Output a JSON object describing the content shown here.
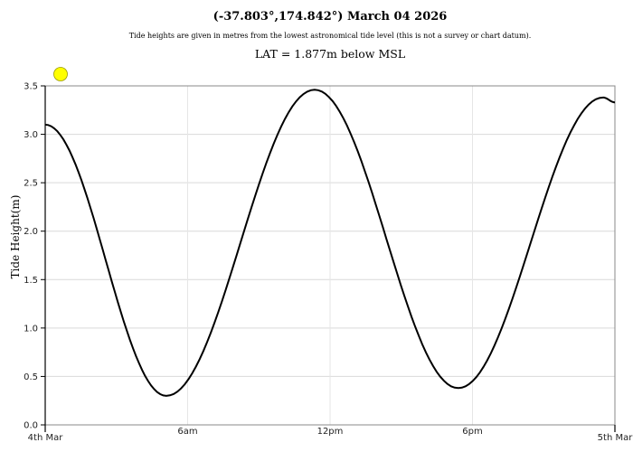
{
  "header": {
    "title": "(-37.803°,174.842°) March 04 2026",
    "subtitle": "Tide heights are given in metres from the lowest astronomical tide level (this is not a survey or chart datum).",
    "lat_note": "LAT = 1.877m below MSL"
  },
  "icons": {
    "sun": "sun-icon"
  },
  "colors": {
    "line": "#000000",
    "grid": "#d9d9d9",
    "axis": "#888888",
    "sun_fill": "#ffff00",
    "sun_stroke": "#999900"
  },
  "chart_data": {
    "type": "line",
    "title": "(-37.803°,174.842°) March 04 2026",
    "xlabel": "",
    "ylabel": "Tide Height(m)",
    "ylim": [
      0,
      3.5
    ],
    "xlim_hours": [
      0,
      24
    ],
    "grid": true,
    "legend": "none",
    "y_ticks": [
      "0.0",
      "0.5",
      "1.0",
      "1.5",
      "2.0",
      "2.5",
      "3.0",
      "3.5"
    ],
    "x_ticks": [
      {
        "hour": 0,
        "label": "4th Mar"
      },
      {
        "hour": 6,
        "label": "6am"
      },
      {
        "hour": 12,
        "label": "12pm"
      },
      {
        "hour": 18,
        "label": "6pm"
      },
      {
        "hour": 24,
        "label": "5th Mar"
      }
    ],
    "extremes": [
      {
        "hour": 0.0,
        "height": 3.1,
        "type": "start"
      },
      {
        "hour": 5.1,
        "height": 0.3,
        "type": "low"
      },
      {
        "hour": 11.35,
        "height": 3.46,
        "type": "high"
      },
      {
        "hour": 17.4,
        "height": 0.38,
        "type": "low"
      },
      {
        "hour": 23.5,
        "height": 3.38,
        "type": "high"
      },
      {
        "hour": 24.0,
        "height": 3.33,
        "type": "end"
      }
    ],
    "series": [
      {
        "name": "Tide Height",
        "x_hours": [
          0,
          1,
          2,
          3,
          4,
          5,
          6,
          7,
          8,
          9,
          10,
          11,
          12,
          13,
          14,
          15,
          16,
          17,
          18,
          19,
          20,
          21,
          22,
          23,
          24
        ],
        "values": [
          3.1,
          2.62,
          1.88,
          1.13,
          0.55,
          0.3,
          0.48,
          1.01,
          1.78,
          2.57,
          3.17,
          3.45,
          3.36,
          2.88,
          2.15,
          1.35,
          0.72,
          0.4,
          0.48,
          0.98,
          1.72,
          2.52,
          3.1,
          3.37,
          3.33
        ]
      }
    ]
  }
}
